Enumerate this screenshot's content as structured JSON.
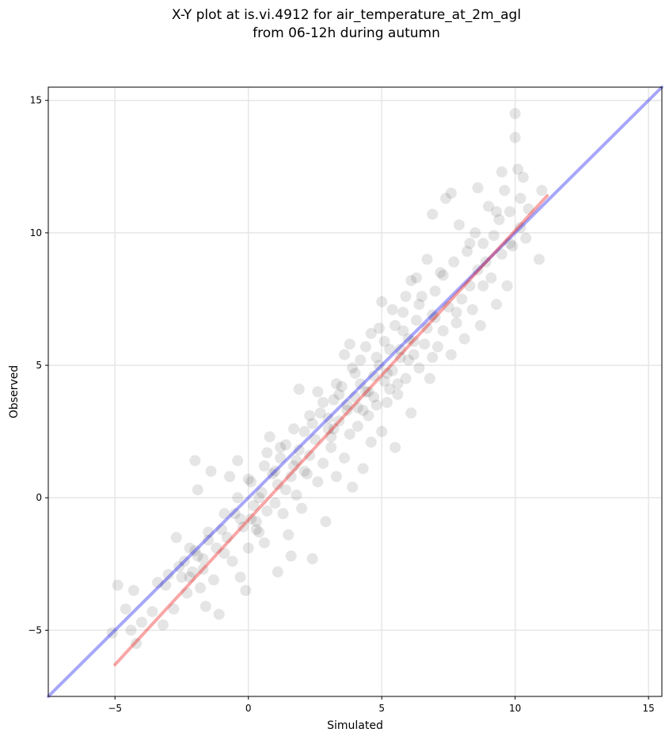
{
  "chart_data": {
    "type": "scatter",
    "title_line1": "X-Y plot at is.vi.4912 for air_temperature_at_2m_agl",
    "title_line2": "from 06-12h during autumn",
    "xlabel": "Simulated",
    "ylabel": "Observed",
    "xlim": [
      -7.5,
      15.5
    ],
    "ylim": [
      -7.5,
      15.5
    ],
    "xticks": [
      -5,
      0,
      5,
      10,
      15
    ],
    "yticks": [
      -5,
      0,
      5,
      10,
      15
    ],
    "grid": true,
    "marker_color": "#000000",
    "marker_alpha": 0.1,
    "identity_line": {
      "color": "#0000ee",
      "alpha": 0.35,
      "from": [
        -7.5,
        -7.5
      ],
      "to": [
        15.5,
        15.5
      ]
    },
    "fit_line": {
      "color": "#ee0000",
      "alpha": 0.35,
      "from": [
        -5.0,
        -6.3
      ],
      "to": [
        11.2,
        11.4
      ]
    },
    "series": [
      {
        "points": [
          [
            -5.1,
            -5.1
          ],
          [
            -4.9,
            -3.3
          ],
          [
            -4.6,
            -4.2
          ],
          [
            -4.4,
            -5.0
          ],
          [
            -4.3,
            -3.5
          ],
          [
            -4.2,
            -5.5
          ],
          [
            -4.0,
            -4.7
          ],
          [
            -3.6,
            -4.3
          ],
          [
            -3.4,
            -3.2
          ],
          [
            -3.2,
            -4.8
          ],
          [
            -3.0,
            -2.9
          ],
          [
            -2.8,
            -4.2
          ],
          [
            -2.7,
            -1.5
          ],
          [
            -2.5,
            -3.0
          ],
          [
            -2.4,
            -2.4
          ],
          [
            -2.3,
            -3.6
          ],
          [
            -2.2,
            -1.9
          ],
          [
            -2.1,
            -2.8
          ],
          [
            -2.0,
            1.4
          ],
          [
            -1.9,
            0.3
          ],
          [
            -1.9,
            -2.2
          ],
          [
            -1.8,
            -3.4
          ],
          [
            -1.7,
            -2.7
          ],
          [
            -1.6,
            -4.1
          ],
          [
            -1.5,
            -1.6
          ],
          [
            -1.4,
            1.0
          ],
          [
            -1.3,
            -3.1
          ],
          [
            -1.1,
            -4.4
          ],
          [
            -1.0,
            -1.2
          ],
          [
            -0.9,
            -2.1
          ],
          [
            -0.8,
            -1.5
          ],
          [
            -0.7,
            0.8
          ],
          [
            -0.6,
            -2.4
          ],
          [
            -0.5,
            -0.6
          ],
          [
            -0.4,
            1.4
          ],
          [
            -0.3,
            -3.0
          ],
          [
            -0.2,
            -1.1
          ],
          [
            -0.1,
            -3.5
          ],
          [
            0.0,
            0.7
          ],
          [
            0.0,
            -1.9
          ],
          [
            0.1,
            -0.8
          ],
          [
            0.2,
            -0.3
          ],
          [
            0.3,
            -0.9
          ],
          [
            0.4,
            -1.3
          ],
          [
            0.5,
            0.2
          ],
          [
            0.6,
            -1.7
          ],
          [
            0.7,
            -0.5
          ],
          [
            0.8,
            2.3
          ],
          [
            0.9,
            0.9
          ],
          [
            1.0,
            -0.2
          ],
          [
            1.1,
            0.5
          ],
          [
            1.1,
            -2.8
          ],
          [
            1.2,
            1.5
          ],
          [
            1.3,
            -0.6
          ],
          [
            1.4,
            2.0
          ],
          [
            1.5,
            -1.4
          ],
          [
            1.6,
            0.8
          ],
          [
            1.6,
            -2.2
          ],
          [
            1.7,
            1.2
          ],
          [
            1.8,
            0.1
          ],
          [
            1.9,
            4.1
          ],
          [
            1.9,
            1.8
          ],
          [
            2.0,
            -0.4
          ],
          [
            2.1,
            2.5
          ],
          [
            2.2,
            0.9
          ],
          [
            2.3,
            1.6
          ],
          [
            2.4,
            -2.3
          ],
          [
            2.5,
            2.2
          ],
          [
            2.6,
            0.6
          ],
          [
            2.7,
            3.2
          ],
          [
            2.8,
            1.3
          ],
          [
            2.9,
            -0.9
          ],
          [
            3.0,
            2.6
          ],
          [
            3.1,
            1.9
          ],
          [
            3.2,
            3.7
          ],
          [
            3.3,
            0.8
          ],
          [
            3.4,
            2.9
          ],
          [
            3.5,
            4.2
          ],
          [
            3.6,
            1.5
          ],
          [
            3.7,
            3.3
          ],
          [
            3.8,
            2.4
          ],
          [
            3.8,
            5.8
          ],
          [
            3.9,
            0.4
          ],
          [
            4.0,
            3.8
          ],
          [
            4.1,
            2.7
          ],
          [
            4.2,
            5.2
          ],
          [
            4.3,
            1.1
          ],
          [
            4.4,
            4.0
          ],
          [
            4.5,
            3.1
          ],
          [
            4.6,
            6.2
          ],
          [
            4.6,
            2.1
          ],
          [
            4.7,
            4.6
          ],
          [
            4.8,
            3.5
          ],
          [
            4.9,
            5.0
          ],
          [
            5.0,
            2.5
          ],
          [
            5.0,
            7.4
          ],
          [
            5.1,
            4.4
          ],
          [
            5.2,
            3.6
          ],
          [
            5.3,
            5.6
          ],
          [
            5.4,
            4.8
          ],
          [
            5.5,
            1.9
          ],
          [
            5.5,
            6.5
          ],
          [
            5.6,
            3.9
          ],
          [
            5.7,
            5.3
          ],
          [
            5.8,
            7.0
          ],
          [
            5.9,
            4.5
          ],
          [
            6.0,
            6.0
          ],
          [
            6.1,
            3.2
          ],
          [
            6.1,
            8.2
          ],
          [
            6.2,
            5.4
          ],
          [
            6.3,
            6.7
          ],
          [
            6.4,
            4.9
          ],
          [
            6.5,
            7.6
          ],
          [
            6.6,
            5.8
          ],
          [
            6.7,
            9.0
          ],
          [
            6.8,
            4.5
          ],
          [
            6.9,
            6.9
          ],
          [
            7.0,
            7.8
          ],
          [
            7.1,
            5.7
          ],
          [
            7.2,
            8.5
          ],
          [
            7.3,
            6.3
          ],
          [
            7.4,
            11.3
          ],
          [
            7.5,
            7.2
          ],
          [
            7.6,
            5.4
          ],
          [
            7.7,
            8.9
          ],
          [
            7.8,
            6.6
          ],
          [
            7.9,
            10.3
          ],
          [
            8.0,
            7.5
          ],
          [
            8.1,
            6.0
          ],
          [
            8.2,
            9.3
          ],
          [
            8.3,
            8.0
          ],
          [
            8.4,
            7.1
          ],
          [
            8.5,
            10.0
          ],
          [
            8.6,
            8.6
          ],
          [
            8.7,
            6.5
          ],
          [
            8.8,
            9.6
          ],
          [
            8.9,
            8.9
          ],
          [
            9.0,
            11.0
          ],
          [
            9.1,
            8.3
          ],
          [
            9.2,
            9.9
          ],
          [
            9.3,
            7.3
          ],
          [
            9.4,
            10.5
          ],
          [
            9.5,
            9.2
          ],
          [
            9.6,
            11.6
          ],
          [
            9.7,
            8.0
          ],
          [
            9.8,
            10.8
          ],
          [
            9.9,
            9.5
          ],
          [
            10.0,
            13.6
          ],
          [
            10.0,
            14.5
          ],
          [
            10.1,
            12.4
          ],
          [
            10.2,
            10.2
          ],
          [
            10.3,
            12.1
          ],
          [
            10.4,
            9.8
          ],
          [
            10.5,
            10.9
          ],
          [
            10.9,
            9.0
          ],
          [
            11.0,
            11.6
          ],
          [
            9.5,
            12.3
          ],
          [
            8.6,
            11.7
          ],
          [
            6.9,
            10.7
          ],
          [
            7.6,
            11.5
          ],
          [
            5.9,
            7.6
          ],
          [
            6.3,
            8.3
          ],
          [
            5.4,
            7.1
          ],
          [
            4.9,
            6.4
          ],
          [
            4.4,
            5.7
          ],
          [
            3.9,
            4.9
          ],
          [
            3.3,
            4.3
          ],
          [
            2.8,
            3.6
          ],
          [
            2.3,
            3.1
          ],
          [
            1.7,
            2.6
          ],
          [
            1.2,
            1.9
          ],
          [
            0.6,
            1.2
          ],
          [
            0.1,
            0.6
          ],
          [
            -0.4,
            0.0
          ],
          [
            -0.9,
            -0.6
          ],
          [
            -1.5,
            -1.3
          ],
          [
            -2.0,
            -2.0
          ],
          [
            -2.6,
            -2.6
          ],
          [
            -3.1,
            -3.3
          ],
          [
            3.6,
            5.4
          ],
          [
            4.3,
            3.3
          ],
          [
            5.1,
            5.9
          ],
          [
            5.6,
            4.3
          ],
          [
            6.4,
            7.3
          ],
          [
            6.9,
            5.3
          ],
          [
            7.3,
            8.4
          ],
          [
            7.8,
            7.0
          ],
          [
            8.3,
            9.6
          ],
          [
            8.8,
            8.0
          ],
          [
            9.3,
            10.8
          ],
          [
            9.8,
            9.6
          ],
          [
            10.2,
            11.3
          ],
          [
            2.6,
            4.0
          ],
          [
            3.1,
            2.3
          ],
          [
            2.1,
            1.0
          ],
          [
            1.4,
            0.3
          ],
          [
            0.7,
            1.7
          ],
          [
            0.3,
            -1.2
          ],
          [
            4.0,
            4.7
          ],
          [
            4.5,
            4.0
          ],
          [
            5.2,
            4.7
          ],
          [
            5.7,
            5.6
          ],
          [
            6.2,
            5.9
          ],
          [
            6.7,
            6.4
          ],
          [
            7.0,
            6.8
          ],
          [
            4.7,
            3.8
          ],
          [
            5.3,
            4.1
          ],
          [
            4.1,
            3.4
          ],
          [
            3.4,
            3.9
          ],
          [
            3.0,
            3.0
          ],
          [
            2.4,
            2.8
          ],
          [
            1.8,
            1.4
          ],
          [
            1.0,
            1.0
          ],
          [
            0.4,
            0.0
          ],
          [
            -0.3,
            -0.8
          ],
          [
            -1.2,
            -1.9
          ],
          [
            -1.7,
            -2.3
          ],
          [
            -2.2,
            -3.0
          ],
          [
            5.8,
            6.3
          ],
          [
            6.0,
            5.2
          ],
          [
            4.8,
            5.3
          ],
          [
            4.2,
            4.3
          ],
          [
            3.7,
            3.5
          ],
          [
            3.2,
            2.6
          ]
        ]
      }
    ]
  }
}
